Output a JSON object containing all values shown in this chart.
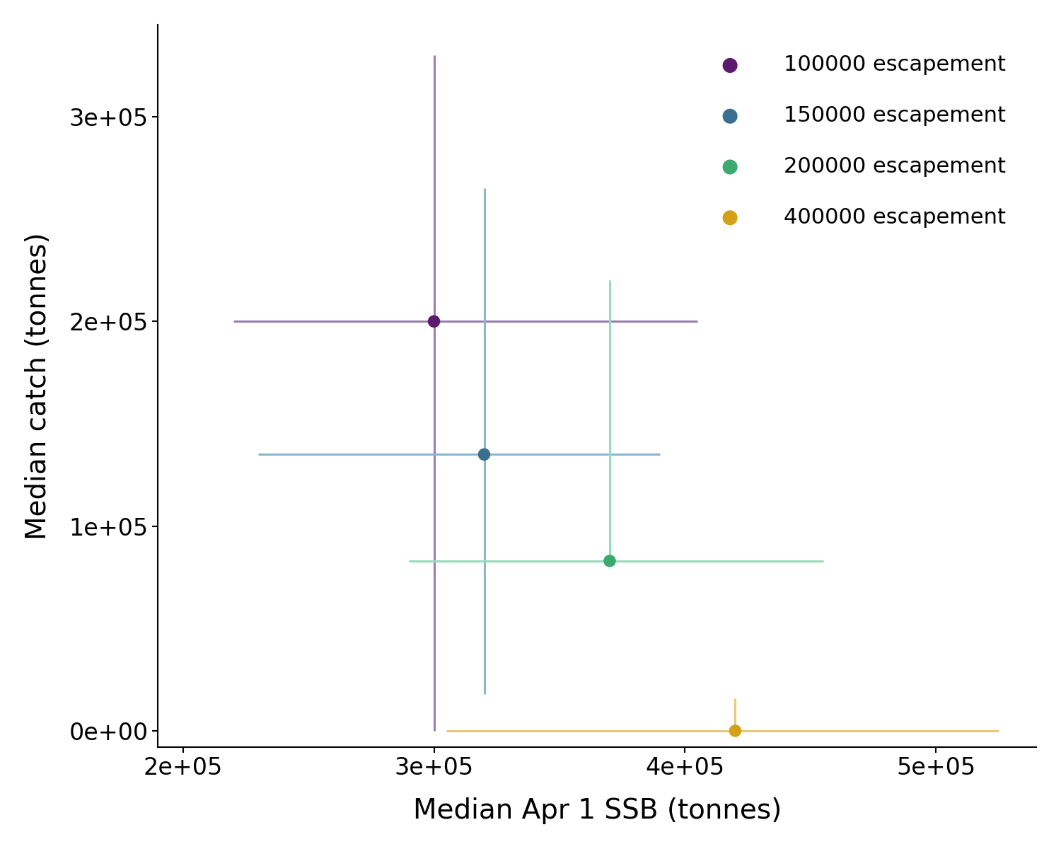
{
  "series": [
    {
      "label": "100000 escapement",
      "color": "#5c1a6e",
      "line_color": "#9b7db5",
      "median_ssb": 300000,
      "median_catch": 200000,
      "ssb_low": 220000,
      "ssb_high": 405000,
      "catch_low": 0,
      "catch_high": 330000
    },
    {
      "label": "150000 escapement",
      "color": "#3a6f8f",
      "line_color": "#90b4cc",
      "median_ssb": 320000,
      "median_catch": 135000,
      "ssb_low": 230000,
      "ssb_high": 390000,
      "catch_low": 18000,
      "catch_high": 265000
    },
    {
      "label": "200000 escapement",
      "color": "#3aaa6e",
      "line_color": "#93ddb8",
      "median_ssb": 370000,
      "median_catch": 83000,
      "ssb_low": 290000,
      "ssb_high": 455000,
      "catch_low": 83000,
      "catch_high": 220000
    },
    {
      "label": "400000 escapement",
      "color": "#d4a017",
      "line_color": "#e8c97a",
      "median_ssb": 420000,
      "median_catch": 0,
      "ssb_low": 305000,
      "ssb_high": 525000,
      "catch_low": 0,
      "catch_high": 16000
    }
  ],
  "xlabel": "Median Apr 1 SSB (tonnes)",
  "ylabel": "Median catch (tonnes)",
  "xlim": [
    190000,
    540000
  ],
  "ylim": [
    -8000,
    345000
  ],
  "xticks": [
    200000,
    300000,
    400000,
    500000
  ],
  "yticks": [
    0,
    100000,
    200000,
    300000
  ],
  "background_color": "#ffffff",
  "line_width": 2.2,
  "point_size": 160
}
